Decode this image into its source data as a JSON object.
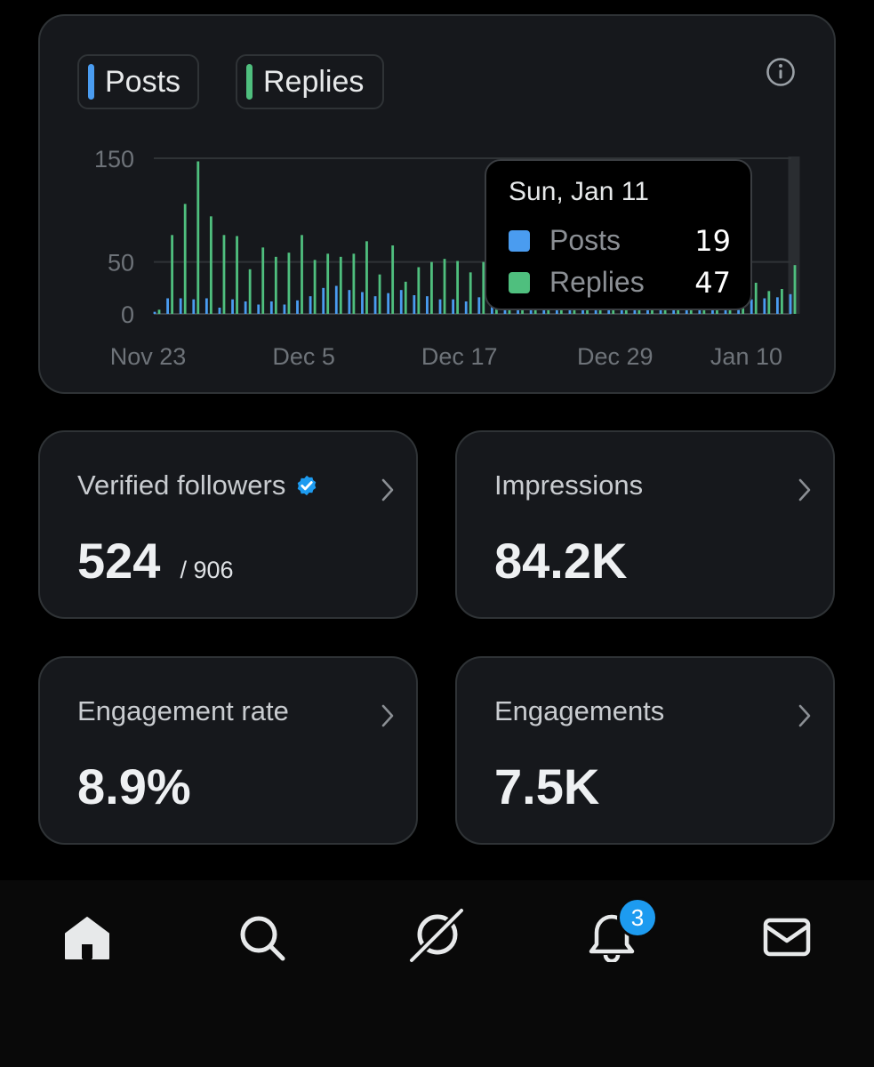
{
  "legend": {
    "posts_label": "Posts",
    "replies_label": "Replies"
  },
  "colors": {
    "posts": "#4a9cf0",
    "replies": "#4fbf7e",
    "accent": "#1d9bf0"
  },
  "tooltip": {
    "date": "Sun, Jan 11",
    "posts_label": "Posts",
    "posts_value": "19",
    "replies_label": "Replies",
    "replies_value": "47"
  },
  "chart_data": {
    "type": "bar",
    "title": "",
    "xlabel": "",
    "ylabel": "",
    "ylim": [
      0,
      150
    ],
    "y_ticks": [
      0,
      50,
      150
    ],
    "x_tick_labels": [
      "Nov 23",
      "Dec 5",
      "Dec 17",
      "Dec 29",
      "Jan 10"
    ],
    "x_tick_indices": [
      0,
      12,
      24,
      36,
      48
    ],
    "grid": true,
    "legend": "top-left",
    "highlighted_index": 49,
    "series": [
      {
        "name": "Posts",
        "values": [
          2,
          15,
          15,
          14,
          15,
          6,
          14,
          12,
          9,
          12,
          9,
          13,
          17,
          25,
          27,
          23,
          21,
          17,
          20,
          23,
          18,
          17,
          14,
          14,
          12,
          16,
          12,
          13,
          9,
          10,
          13,
          11,
          14,
          10,
          11,
          10,
          12,
          11,
          9,
          13,
          11,
          14,
          10,
          13,
          12,
          12,
          14,
          15,
          16,
          19
        ]
      },
      {
        "name": "Replies",
        "values": [
          4,
          76,
          106,
          147,
          94,
          76,
          75,
          43,
          64,
          55,
          59,
          76,
          52,
          58,
          55,
          58,
          70,
          38,
          66,
          31,
          45,
          50,
          53,
          51,
          40,
          50,
          30,
          34,
          23,
          28,
          25,
          24,
          20,
          24,
          20,
          19,
          21,
          20,
          18,
          20,
          17,
          19,
          16,
          20,
          18,
          20,
          30,
          22,
          24,
          47
        ]
      }
    ]
  },
  "stats": {
    "verified": {
      "title": "Verified followers",
      "value": "524",
      "sub": "/ 906"
    },
    "impressions": {
      "title": "Impressions",
      "value": "84.2K"
    },
    "engagement_rate": {
      "title": "Engagement rate",
      "value": "8.9%"
    },
    "engagements": {
      "title": "Engagements",
      "value": "7.5K"
    }
  },
  "nav": {
    "items": [
      "home-icon",
      "search-icon",
      "grok-icon",
      "bell-icon",
      "mail-icon"
    ],
    "notification_count": "3"
  }
}
